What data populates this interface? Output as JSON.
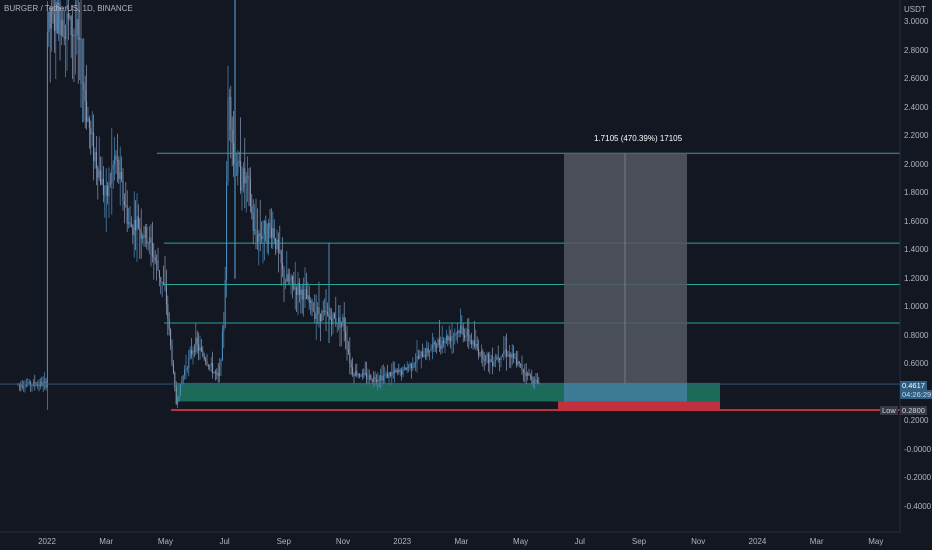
{
  "header": {
    "symbol_line": "BURGER / TetherUS, 1D, BINANCE"
  },
  "y_axis": {
    "unit": "USDT",
    "ticks": [
      "3.0000",
      "2.8000",
      "2.6000",
      "2.4000",
      "2.2000",
      "2.0000",
      "1.8000",
      "1.6000",
      "1.4000",
      "1.2000",
      "1.0000",
      "0.8000",
      "0.6000",
      "0.2000",
      "-0.0000",
      "-0.2000",
      "-0.4000"
    ]
  },
  "x_axis": {
    "ticks": [
      "2022",
      "Mar",
      "May",
      "Jul",
      "Sep",
      "Nov",
      "2023",
      "Mar",
      "May",
      "Jul",
      "Sep",
      "Nov",
      "2024",
      "Mar",
      "May"
    ]
  },
  "projection": {
    "label": "1.7105 (470.39%) 17105"
  },
  "price_tags": {
    "last_price": "0.4617",
    "countdown": "04:26:29",
    "low_label": "Low",
    "low_value": "0.2800"
  },
  "colors": {
    "background": "#131722",
    "level_line": "#26a69a",
    "candle_up": "#4e8fbf",
    "candle_down": "#8a9bb8",
    "buy_zone": "#1f7a63",
    "stop_zone": "#c0303f",
    "projection_box": "#55585f"
  },
  "chart_data": {
    "type": "candlestick",
    "pair": "BURGER/USDT",
    "interval": "1D",
    "exchange": "BINANCE",
    "y_range": [
      -0.45,
      3.1
    ],
    "horizontal_levels": [
      2.08,
      1.45,
      1.16,
      0.89
    ],
    "buy_zone": [
      0.34,
      0.47
    ],
    "stop_zone": [
      0.28,
      0.34
    ],
    "stop_line": 0.28,
    "last_price": 0.4617,
    "low": 0.28,
    "projection_target": 2.08,
    "price_path": [
      [
        "2022-01",
        2.95
      ],
      [
        "2022-01-15",
        3.05
      ],
      [
        "2022-02",
        2.9
      ],
      [
        "2022-02-15",
        2.2
      ],
      [
        "2022-03",
        1.75
      ],
      [
        "2022-03-10",
        2.05
      ],
      [
        "2022-03-25",
        1.55
      ],
      [
        "2022-04",
        1.6
      ],
      [
        "2022-04-15",
        1.45
      ],
      [
        "2022-05",
        1.1
      ],
      [
        "2022-05-12",
        0.32
      ],
      [
        "2022-05-20",
        0.55
      ],
      [
        "2022-06",
        0.75
      ],
      [
        "2022-06-15",
        0.6
      ],
      [
        "2022-06-25",
        0.5
      ],
      [
        "2022-07",
        0.95
      ],
      [
        "2022-07-05",
        2.7
      ],
      [
        "2022-07-10",
        2.0
      ],
      [
        "2022-07-25",
        1.85
      ],
      [
        "2022-08",
        1.5
      ],
      [
        "2022-08-20",
        1.55
      ],
      [
        "2022-09",
        1.2
      ],
      [
        "2022-09-20",
        1.1
      ],
      [
        "2022-10",
        0.98
      ],
      [
        "2022-10-20",
        0.92
      ],
      [
        "2022-11",
        0.9
      ],
      [
        "2022-11-10",
        0.55
      ],
      [
        "2022-12",
        0.5
      ],
      [
        "2023-01",
        0.55
      ],
      [
        "2023-02",
        0.72
      ],
      [
        "2023-02-20",
        0.8
      ],
      [
        "2023-03",
        0.85
      ],
      [
        "2023-03-20",
        0.68
      ],
      [
        "2023-04",
        0.62
      ],
      [
        "2023-04-15",
        0.7
      ],
      [
        "2023-05",
        0.58
      ],
      [
        "2023-05-15",
        0.48
      ],
      [
        "2023-05-25",
        0.46
      ]
    ]
  }
}
